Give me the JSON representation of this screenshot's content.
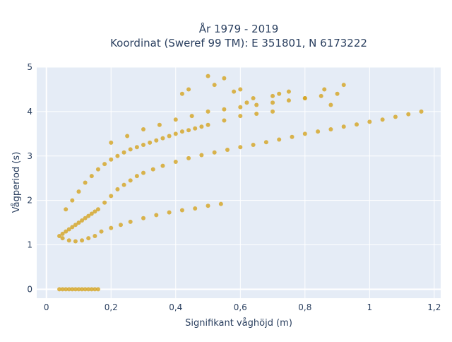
{
  "chart_data": {
    "type": "scatter",
    "title": [
      "År 1979 - 2019",
      "Koordinat (Sweref 99 TM): E 351801, N 6173222"
    ],
    "xlabel": "Signifikant våghöjd (m)",
    "ylabel": "Vågperiod (s)",
    "xlim": [
      -0.03,
      1.22
    ],
    "ylim": [
      -0.2,
      5.0
    ],
    "x_ticks": [
      {
        "value": 0,
        "label": "0"
      },
      {
        "value": 0.2,
        "label": "0,2"
      },
      {
        "value": 0.4,
        "label": "0,4"
      },
      {
        "value": 0.6,
        "label": "0,6"
      },
      {
        "value": 0.8,
        "label": "0,8"
      },
      {
        "value": 1.0,
        "label": "1"
      },
      {
        "value": 1.2,
        "label": "1,2"
      }
    ],
    "y_ticks": [
      {
        "value": 0,
        "label": "0"
      },
      {
        "value": 1,
        "label": "1"
      },
      {
        "value": 2,
        "label": "2"
      },
      {
        "value": 3,
        "label": "3"
      },
      {
        "value": 4,
        "label": "4"
      },
      {
        "value": 5,
        "label": "5"
      }
    ],
    "grid": true,
    "legend": "none",
    "marker_color": "#D4A421",
    "plot_background": "#E5ECF6",
    "series": [
      {
        "x": [
          0.04,
          0.05,
          0.06,
          0.07,
          0.08,
          0.09,
          0.1,
          0.11,
          0.12,
          0.13,
          0.14,
          0.15,
          0.16,
          0.04,
          0.05,
          0.06,
          0.07,
          0.08,
          0.09,
          0.1,
          0.11,
          0.12,
          0.13,
          0.14,
          0.15,
          0.16,
          0.18,
          0.2,
          0.22,
          0.24,
          0.26,
          0.28,
          0.3,
          0.33,
          0.36,
          0.4,
          0.44,
          0.48,
          0.52,
          0.56,
          0.6,
          0.64,
          0.68,
          0.72,
          0.76,
          0.8,
          0.84,
          0.88,
          0.92,
          0.96,
          1.0,
          1.04,
          1.08,
          1.12,
          1.16,
          0.05,
          0.07,
          0.09,
          0.11,
          0.13,
          0.15,
          0.17,
          0.2,
          0.23,
          0.26,
          0.3,
          0.34,
          0.38,
          0.42,
          0.46,
          0.5,
          0.54,
          0.06,
          0.08,
          0.1,
          0.12,
          0.14,
          0.16,
          0.18,
          0.2,
          0.22,
          0.24,
          0.26,
          0.28,
          0.3,
          0.32,
          0.34,
          0.36,
          0.38,
          0.4,
          0.42,
          0.44,
          0.46,
          0.48,
          0.5,
          0.55,
          0.6,
          0.65,
          0.7,
          0.2,
          0.25,
          0.3,
          0.35,
          0.4,
          0.45,
          0.5,
          0.55,
          0.6,
          0.65,
          0.7,
          0.75,
          0.8,
          0.85,
          0.9,
          0.42,
          0.44,
          0.5,
          0.52,
          0.55,
          0.58,
          0.6,
          0.62,
          0.64,
          0.7,
          0.72,
          0.75,
          0.8,
          0.86,
          0.88,
          0.92
        ],
        "y": [
          0,
          0,
          0,
          0,
          0,
          0,
          0,
          0,
          0,
          0,
          0,
          0,
          0,
          1.2,
          1.25,
          1.3,
          1.35,
          1.4,
          1.45,
          1.5,
          1.55,
          1.6,
          1.65,
          1.7,
          1.75,
          1.8,
          1.95,
          2.1,
          2.25,
          2.35,
          2.45,
          2.55,
          2.62,
          2.7,
          2.78,
          2.87,
          2.95,
          3.02,
          3.08,
          3.14,
          3.2,
          3.25,
          3.31,
          3.37,
          3.43,
          3.5,
          3.55,
          3.6,
          3.66,
          3.71,
          3.77,
          3.82,
          3.88,
          3.94,
          4.0,
          1.15,
          1.1,
          1.08,
          1.1,
          1.15,
          1.2,
          1.3,
          1.38,
          1.45,
          1.52,
          1.6,
          1.67,
          1.73,
          1.78,
          1.82,
          1.88,
          1.92,
          1.8,
          2.0,
          2.2,
          2.4,
          2.55,
          2.7,
          2.82,
          2.92,
          3.0,
          3.08,
          3.15,
          3.2,
          3.25,
          3.3,
          3.35,
          3.4,
          3.45,
          3.5,
          3.55,
          3.58,
          3.62,
          3.66,
          3.7,
          3.8,
          3.9,
          3.95,
          4.0,
          3.3,
          3.45,
          3.6,
          3.7,
          3.82,
          3.9,
          4.0,
          4.05,
          4.1,
          4.15,
          4.2,
          4.25,
          4.3,
          4.35,
          4.4,
          4.4,
          4.5,
          4.8,
          4.6,
          4.75,
          4.45,
          4.5,
          4.2,
          4.3,
          4.35,
          4.4,
          4.45,
          4.3,
          4.5,
          4.15,
          4.6
        ]
      }
    ]
  }
}
